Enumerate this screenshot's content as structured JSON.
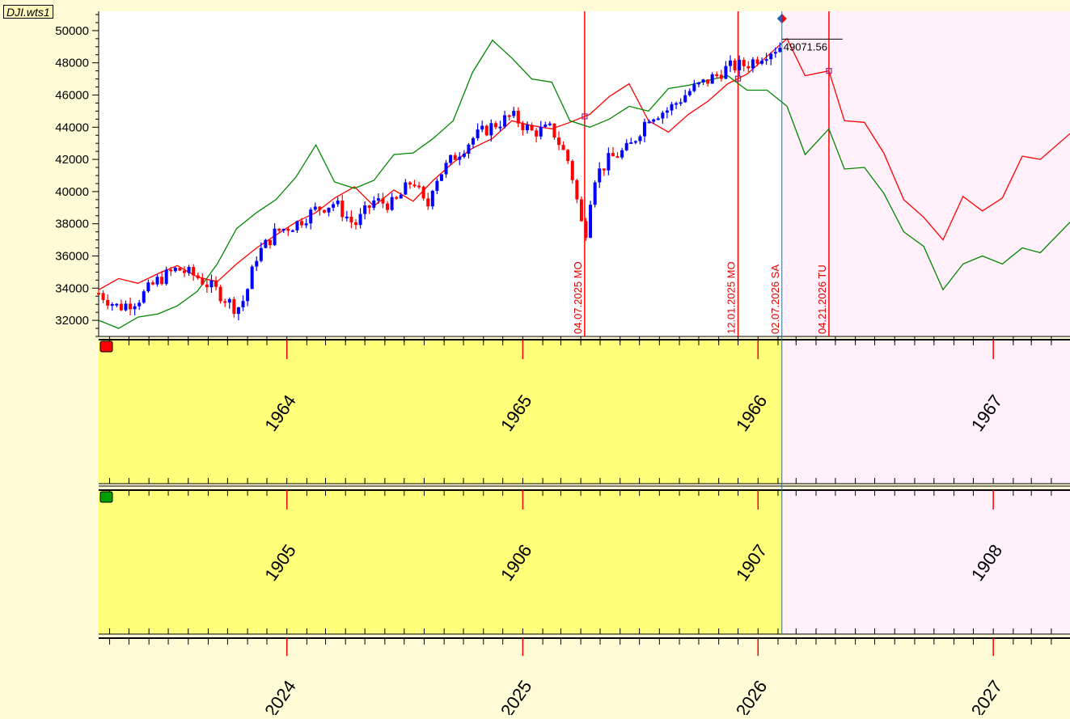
{
  "file_label": "DJI.wts1",
  "colors": {
    "background": "#fffbd6",
    "plot_bg": "#ffffff",
    "forecast_bg": "#fff0fa",
    "panel_yellow": "#ffff7a",
    "up_bar": "#0000ff",
    "down_bar": "#ff0000",
    "red_line": "#ff0000",
    "green_line": "#008800",
    "vline": "#ff0000",
    "current_line": "#2f6f8f",
    "red_marker": "#ff0000",
    "green_marker": "#00a000"
  },
  "panel_markers": [
    {
      "name": "red-series-marker",
      "color": "#ff0000"
    },
    {
      "name": "green-series-marker",
      "color": "#00a000"
    }
  ],
  "last_price_label": "49071.56",
  "current_date": "2026-02-07",
  "axis_year_labels": {
    "red_panel": [
      "1964",
      "1965",
      "1966",
      "1967"
    ],
    "green_panel": [
      "1905",
      "1906",
      "1907",
      "1908"
    ],
    "main": [
      "2024",
      "2025",
      "2026",
      "2027"
    ]
  },
  "chart_data": {
    "type": "line",
    "title": "",
    "y_axis": {
      "min": 31000,
      "max": 51200,
      "ticks": [
        32000,
        34000,
        36000,
        38000,
        40000,
        42000,
        44000,
        46000,
        48000,
        50000
      ]
    },
    "x_axis": {
      "start": "2023-03-15",
      "end": "2027-04-30"
    },
    "vertical_markers": [
      {
        "date": "2025-04-07",
        "label": "04.07.2025 MO"
      },
      {
        "date": "2025-12-01",
        "label": "12.01.2025 MO"
      },
      {
        "date": "2026-02-07",
        "label": "02.07.2026 SA"
      },
      {
        "date": "2026-04-21",
        "label": "04.21.2026 TU"
      }
    ],
    "price_bars": {
      "x": [
        "2023-03-15",
        "2023-04-15",
        "2023-05-15",
        "2023-06-15",
        "2023-07-15",
        "2023-08-15",
        "2023-09-15",
        "2023-10-15",
        "2023-10-28",
        "2023-11-15",
        "2023-12-15",
        "2024-01-15",
        "2024-02-15",
        "2024-03-15",
        "2024-04-15",
        "2024-05-15",
        "2024-06-15",
        "2024-07-15",
        "2024-08-05",
        "2024-08-15",
        "2024-09-15",
        "2024-10-15",
        "2024-11-15",
        "2024-12-15",
        "2025-01-15",
        "2025-02-15",
        "2025-03-15",
        "2025-04-07",
        "2025-04-20",
        "2025-05-15",
        "2025-06-15",
        "2025-07-15",
        "2025-08-15",
        "2025-09-15",
        "2025-10-15",
        "2025-11-15",
        "2025-12-15",
        "2026-01-15",
        "2026-02-07"
      ],
      "y": [
        33700,
        32800,
        33300,
        34500,
        35200,
        34700,
        33800,
        32700,
        33400,
        36000,
        37500,
        38000,
        38900,
        39300,
        37900,
        39400,
        39200,
        40800,
        38800,
        40600,
        42100,
        43300,
        44100,
        44700,
        43700,
        43900,
        41700,
        37000,
        40800,
        42000,
        42700,
        44700,
        45100,
        46200,
        46900,
        47700,
        47900,
        48700,
        49071.56
      ]
    },
    "series": [
      {
        "name": "1964-1967",
        "x": [
          "2023-03-15",
          "2023-04-15",
          "2023-05-15",
          "2023-06-15",
          "2023-07-15",
          "2023-08-15",
          "2023-09-15",
          "2023-10-15",
          "2023-11-15",
          "2023-12-15",
          "2024-01-15",
          "2024-02-15",
          "2024-03-15",
          "2024-04-15",
          "2024-05-15",
          "2024-06-15",
          "2024-07-15",
          "2024-08-15",
          "2024-09-15",
          "2024-10-15",
          "2024-11-15",
          "2024-12-15",
          "2025-01-15",
          "2025-02-15",
          "2025-03-15",
          "2025-04-15",
          "2025-05-15",
          "2025-06-15",
          "2025-07-15",
          "2025-08-15",
          "2025-09-15",
          "2025-10-15",
          "2025-11-15",
          "2025-12-15",
          "2026-01-15",
          "2026-02-15",
          "2026-03-15",
          "2026-04-21",
          "2026-05-15",
          "2026-06-15",
          "2026-07-15",
          "2026-08-15",
          "2026-09-15",
          "2026-10-15",
          "2026-11-15",
          "2026-12-15",
          "2027-01-15",
          "2027-02-15",
          "2027-03-15",
          "2027-04-30"
        ],
        "y": [
          33900,
          34600,
          34300,
          34900,
          35400,
          34700,
          34400,
          35500,
          36500,
          37300,
          38100,
          38700,
          39600,
          40300,
          39100,
          40100,
          39400,
          40700,
          41800,
          42700,
          43300,
          44400,
          44100,
          43900,
          44300,
          44800,
          45900,
          46700,
          44400,
          43700,
          44800,
          45600,
          46700,
          47300,
          48400,
          49500,
          47200,
          47500,
          44400,
          44300,
          42400,
          39500,
          38400,
          37000,
          39700,
          38800,
          39600,
          42200,
          42000,
          43600
        ]
      },
      {
        "name": "1905-1908",
        "x": [
          "2023-03-15",
          "2023-04-15",
          "2023-05-15",
          "2023-06-15",
          "2023-07-15",
          "2023-08-15",
          "2023-09-15",
          "2023-10-15",
          "2023-11-15",
          "2023-12-15",
          "2024-01-15",
          "2024-02-15",
          "2024-03-15",
          "2024-04-15",
          "2024-05-15",
          "2024-06-15",
          "2024-07-15",
          "2024-08-15",
          "2024-09-15",
          "2024-10-15",
          "2024-11-15",
          "2024-12-15",
          "2025-01-15",
          "2025-02-15",
          "2025-03-15",
          "2025-04-15",
          "2025-05-15",
          "2025-06-15",
          "2025-07-15",
          "2025-08-15",
          "2025-09-15",
          "2025-10-15",
          "2025-11-15",
          "2025-12-15",
          "2026-01-15",
          "2026-02-15",
          "2026-03-15",
          "2026-04-21",
          "2026-05-15",
          "2026-06-15",
          "2026-07-15",
          "2026-08-15",
          "2026-09-15",
          "2026-10-15",
          "2026-11-15",
          "2026-12-15",
          "2027-01-15",
          "2027-02-15",
          "2027-03-15",
          "2027-04-30"
        ],
        "y": [
          32000,
          31500,
          32200,
          32400,
          32900,
          33800,
          35500,
          37700,
          38700,
          39500,
          40900,
          42900,
          40600,
          40200,
          40700,
          42300,
          42400,
          43300,
          44400,
          47400,
          49400,
          48300,
          47000,
          46800,
          44400,
          44000,
          44500,
          45300,
          45000,
          46400,
          46600,
          46900,
          47200,
          46300,
          46300,
          45300,
          42300,
          43900,
          41400,
          41500,
          39900,
          37500,
          36600,
          33900,
          35500,
          36000,
          35500,
          36500,
          36200,
          38100
        ]
      }
    ]
  }
}
